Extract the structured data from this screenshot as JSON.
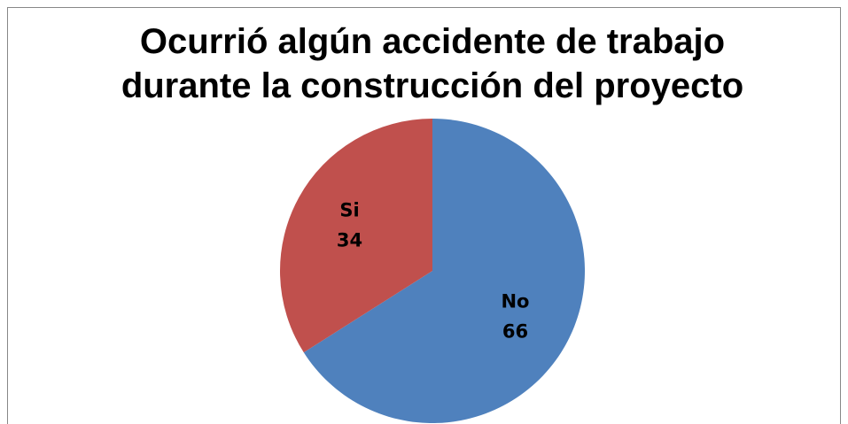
{
  "chart_data": {
    "type": "pie",
    "title": "Ocurrió algún accidente de trabajo durante la construcción del proyecto",
    "categories": [
      "No",
      "Si"
    ],
    "values": [
      66,
      34
    ],
    "colors": [
      "#4f81bd",
      "#c0504d"
    ]
  }
}
